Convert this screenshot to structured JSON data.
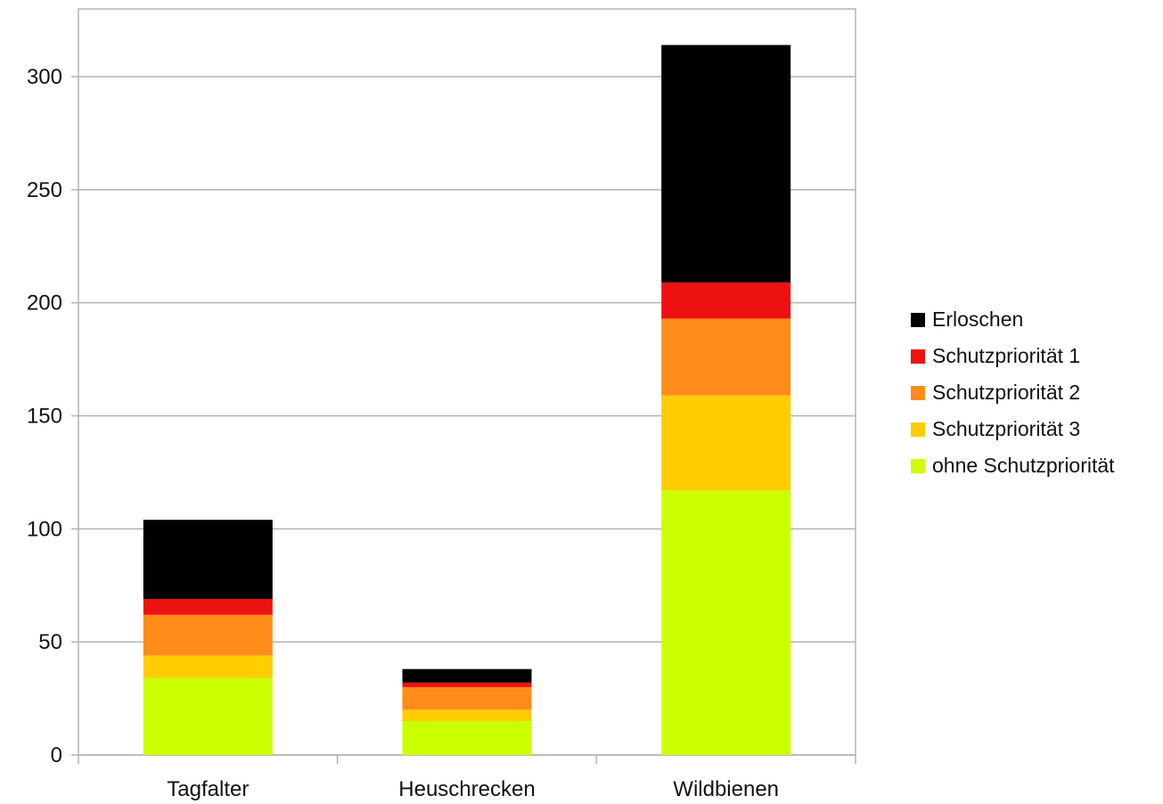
{
  "chart_data": {
    "type": "bar",
    "stacked": true,
    "categories": [
      "Tagfalter",
      "Heuschrecken",
      "Wildbienen"
    ],
    "series": [
      {
        "name": "ohne Schutzpriorität",
        "color": "#ccff00",
        "values": [
          34,
          15,
          117
        ]
      },
      {
        "name": "Schutzpriorität 3",
        "color": "#ffcc00",
        "values": [
          10,
          5,
          42
        ]
      },
      {
        "name": "Schutzpriorität 2",
        "color": "#ff8c1a",
        "values": [
          18,
          10,
          34
        ]
      },
      {
        "name": "Schutzpriorität 1",
        "color": "#ee1111",
        "values": [
          7,
          2,
          16
        ]
      },
      {
        "name": "Erloschen",
        "color": "#000000",
        "values": [
          35,
          6,
          105
        ]
      }
    ],
    "yticks": [
      0,
      50,
      100,
      150,
      200,
      250,
      300
    ],
    "ylim": [
      0,
      300
    ],
    "grid": true,
    "legend_position": "right",
    "legend_order": [
      "Erloschen",
      "Schutzpriorität 1",
      "Schutzpriorität 2",
      "Schutzpriorität 3",
      "ohne Schutzpriorität"
    ]
  }
}
